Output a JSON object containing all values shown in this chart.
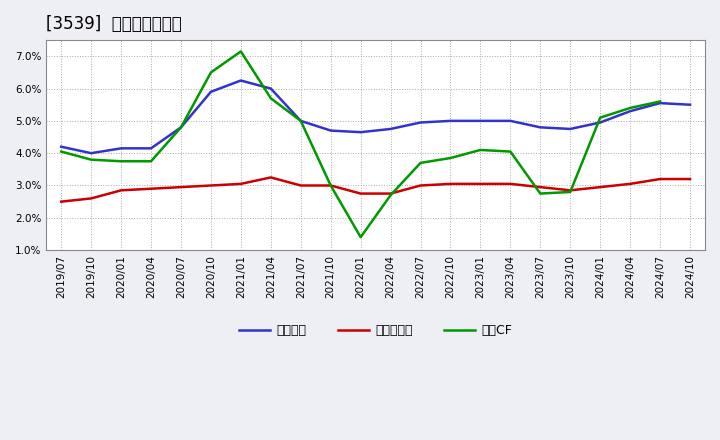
{
  "title": "[3539]  マージンの推移",
  "x_labels": [
    "2019/07",
    "2019/10",
    "2020/01",
    "2020/04",
    "2020/07",
    "2020/10",
    "2021/01",
    "2021/04",
    "2021/07",
    "2021/10",
    "2022/01",
    "2022/04",
    "2022/07",
    "2022/10",
    "2023/01",
    "2023/04",
    "2023/07",
    "2023/10",
    "2024/01",
    "2024/04",
    "2024/07",
    "2024/10"
  ],
  "blue_data": [
    4.2,
    4.0,
    4.15,
    4.15,
    4.8,
    5.9,
    6.25,
    6.0,
    5.0,
    4.7,
    4.65,
    4.75,
    4.95,
    5.0,
    5.0,
    5.0,
    4.8,
    4.75,
    4.95,
    5.3,
    5.55,
    5.5
  ],
  "red_data": [
    2.5,
    2.6,
    2.85,
    2.9,
    2.95,
    3.0,
    3.05,
    3.25,
    3.0,
    3.0,
    2.75,
    2.75,
    3.0,
    3.05,
    3.05,
    3.05,
    2.95,
    2.85,
    2.95,
    3.05,
    3.2,
    3.2
  ],
  "green_data": [
    4.05,
    3.8,
    3.75,
    3.75,
    4.8,
    6.5,
    7.15,
    5.7,
    5.0,
    3.0,
    1.4,
    2.7,
    3.7,
    3.85,
    4.1,
    4.05,
    2.75,
    2.8,
    5.1,
    5.4,
    5.6,
    null
  ],
  "ylim": [
    1.0,
    7.5
  ],
  "yticks": [
    1.0,
    2.0,
    3.0,
    4.0,
    5.0,
    6.0,
    7.0
  ],
  "legend_labels": [
    "経常利益",
    "当期純利益",
    "営業CF"
  ],
  "line_colors": [
    "#3333cc",
    "#cc0000",
    "#009900"
  ],
  "bg_color": "#eeeef5",
  "plot_bg_color": "#ffffff",
  "grid_color": "#aaaaaa",
  "title_fontsize": 12,
  "tick_fontsize": 7.5,
  "legend_fontsize": 9
}
